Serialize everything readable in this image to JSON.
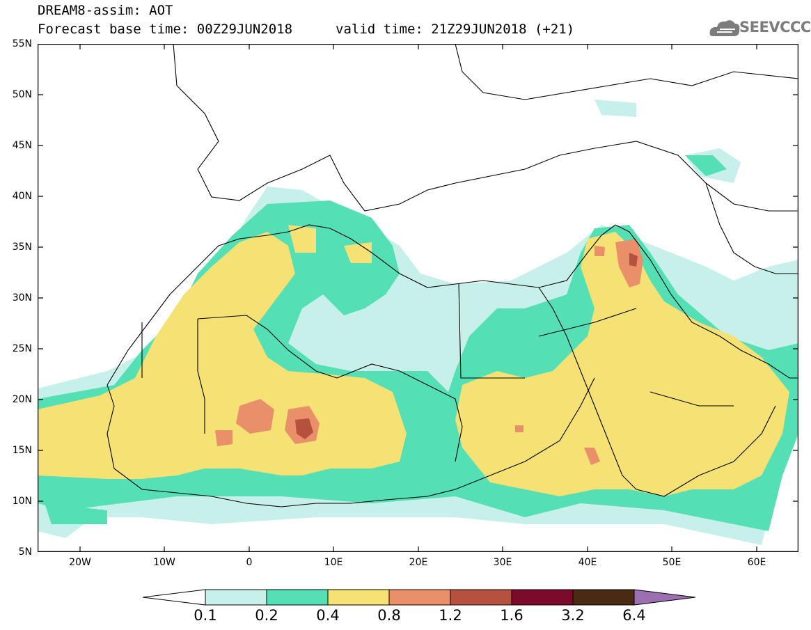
{
  "title": {
    "line1": "DREAM8-assim: AOT",
    "line2": "Forecast base time: 00Z29JUN2018",
    "valid": "valid time: 21Z29JUN2018 (+21)"
  },
  "logo": {
    "text": "SEEVCCC",
    "icon": "cloud-logo-icon",
    "color": "#7c7c7c"
  },
  "axes": {
    "lat_labels": [
      "55N",
      "50N",
      "45N",
      "40N",
      "35N",
      "30N",
      "25N",
      "20N",
      "15N",
      "10N",
      "5N"
    ],
    "lat_values": [
      55,
      50,
      45,
      40,
      35,
      30,
      25,
      20,
      15,
      10,
      5
    ],
    "lon_labels": [
      "20W",
      "10W",
      "0",
      "10E",
      "20E",
      "30E",
      "40E",
      "50E",
      "60E"
    ],
    "lon_values": [
      -20,
      -10,
      0,
      10,
      20,
      30,
      40,
      50,
      60
    ],
    "lon_range": [
      -25,
      65
    ],
    "lat_range": [
      5,
      55
    ]
  },
  "legend": {
    "labels": [
      "0.1",
      "0.2",
      "0.4",
      "0.8",
      "1.2",
      "1.6",
      "3.2",
      "6.4"
    ],
    "colors": [
      "#ffffff",
      "#c8f0ea",
      "#55dfb5",
      "#f5e174",
      "#e9906a",
      "#b5513e",
      "#7c0a2a",
      "#4a2a12",
      "#9b6fb0"
    ]
  }
}
